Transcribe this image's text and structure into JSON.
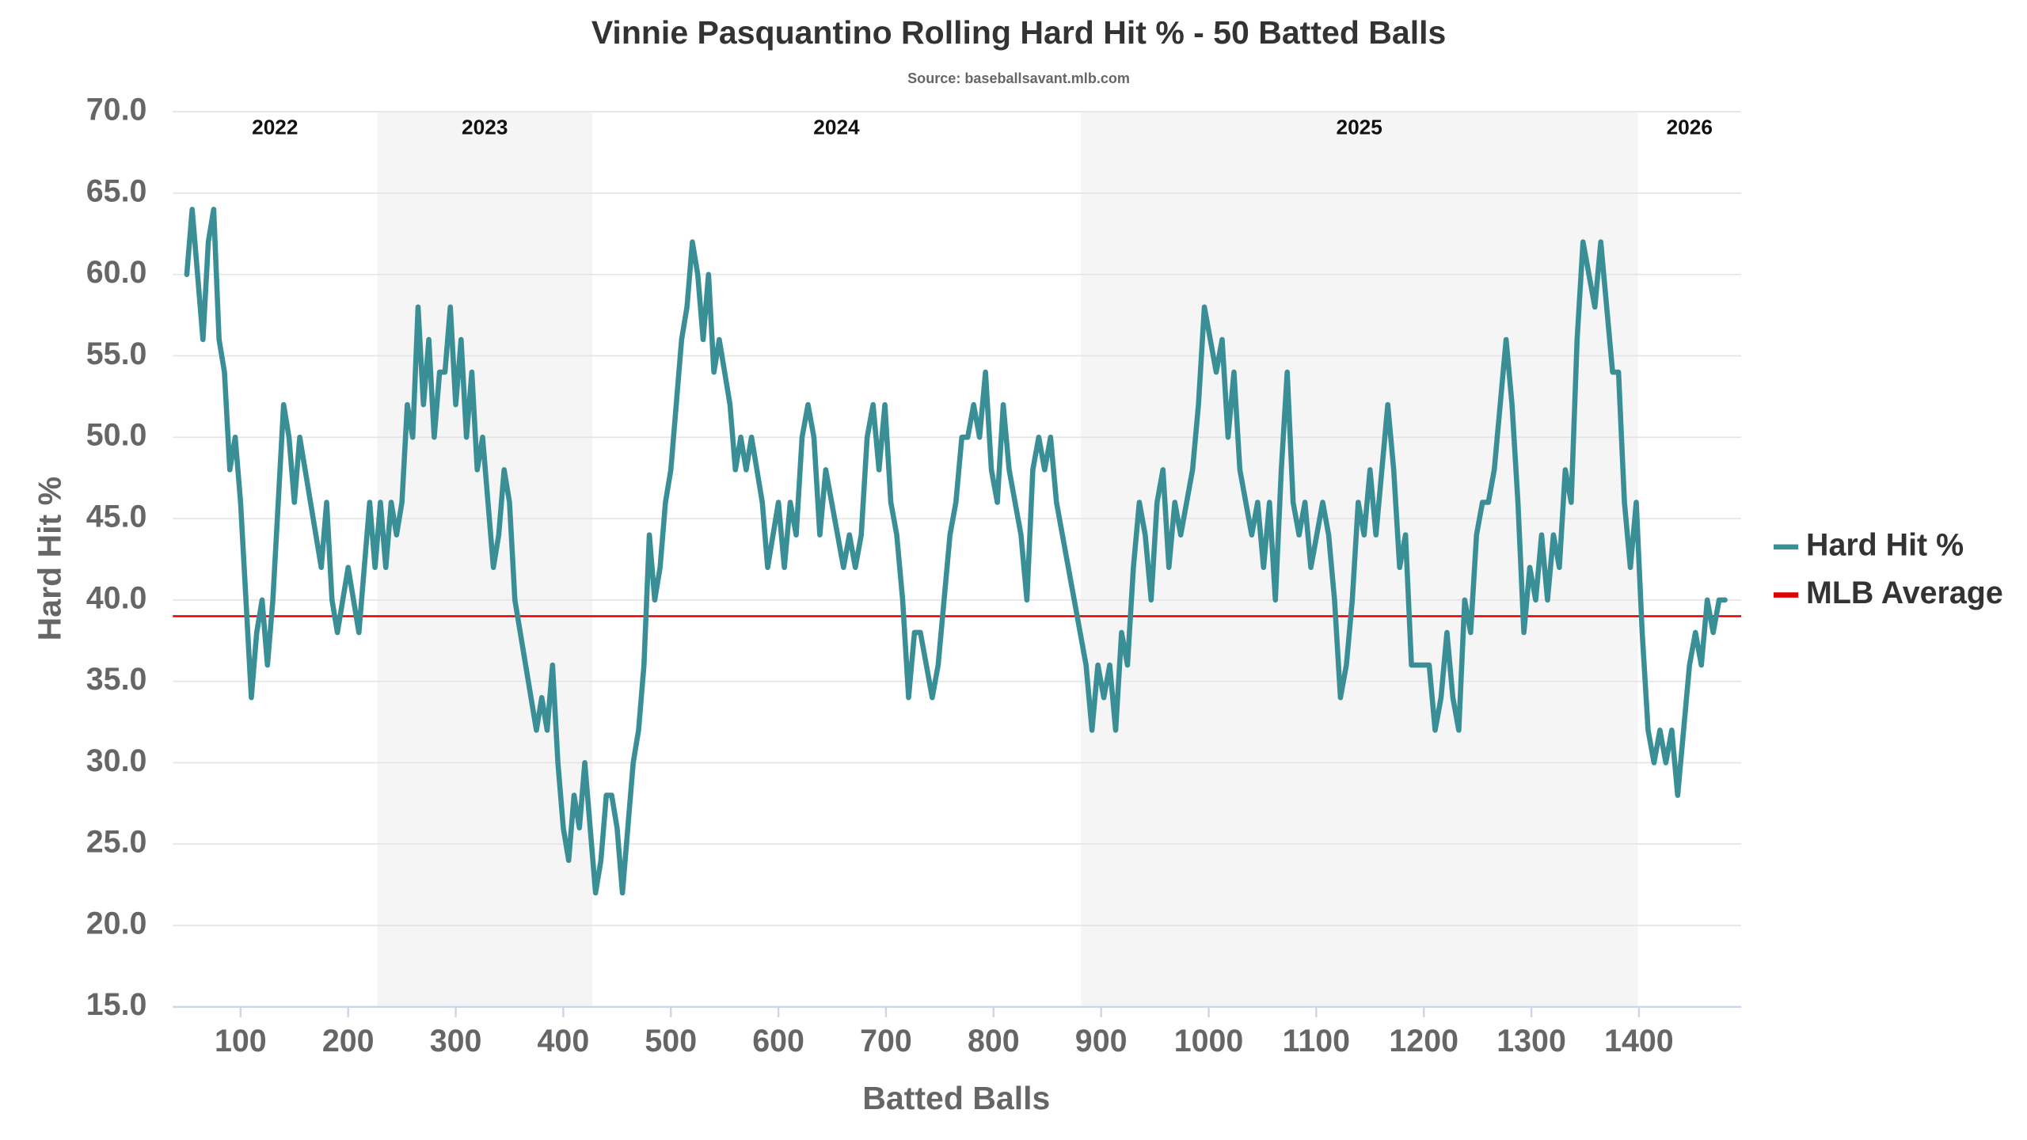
{
  "chart_data": {
    "type": "line",
    "title": "Vinnie Pasquantino Rolling Hard Hit % - 50 Batted Balls",
    "subtitle": "Source: baseballsavant.mlb.com",
    "x_label": "Batted Balls",
    "y_label": "Hard Hit %",
    "xlim": [
      37,
      1495
    ],
    "ylim": [
      15,
      70
    ],
    "xticks": [
      100,
      200,
      300,
      400,
      500,
      600,
      700,
      800,
      900,
      1000,
      1100,
      1200,
      1300,
      1400
    ],
    "yticks": [
      {
        "value": 15,
        "label": "15.0"
      },
      {
        "value": 20,
        "label": "20.0"
      },
      {
        "value": 25,
        "label": "25.0"
      },
      {
        "value": 30,
        "label": "30.0"
      },
      {
        "value": 35,
        "label": "35.0"
      },
      {
        "value": 40,
        "label": "40.0"
      },
      {
        "value": 45,
        "label": "45.0"
      },
      {
        "value": 50,
        "label": "50.0"
      },
      {
        "value": 55,
        "label": "55.0"
      },
      {
        "value": 60,
        "label": "60.0"
      },
      {
        "value": 65,
        "label": "65.0"
      },
      {
        "value": 70,
        "label": "70.0"
      }
    ],
    "grid": true,
    "legend": "right",
    "seasons": [
      {
        "label": "2022",
        "start": 37,
        "end": 227,
        "shaded": false
      },
      {
        "label": "2023",
        "start": 227,
        "end": 427,
        "shaded": true
      },
      {
        "label": "2024",
        "start": 427,
        "end": 881,
        "shaded": false
      },
      {
        "label": "2025",
        "start": 881,
        "end": 1399,
        "shaded": true
      },
      {
        "label": "2026",
        "start": 1399,
        "end": 1495,
        "shaded": false
      }
    ],
    "reference_lines": [
      {
        "name": "MLB Average",
        "value": 39,
        "color": "#e00000"
      }
    ],
    "x": [
      50,
      55,
      60,
      65,
      70,
      75,
      80,
      85,
      90,
      95,
      100,
      105,
      110,
      115,
      120,
      125,
      130,
      135,
      140,
      145,
      150,
      155,
      160,
      165,
      170,
      175,
      180,
      185,
      190,
      195,
      200,
      205,
      210,
      215,
      220,
      225,
      230,
      235,
      240,
      245,
      250,
      255,
      260,
      265,
      270,
      275,
      280,
      285,
      290,
      295,
      300,
      305,
      310,
      315,
      320,
      325,
      330,
      335,
      340,
      345,
      350,
      355,
      360,
      365,
      370,
      375,
      380,
      385,
      390,
      395,
      400,
      405,
      410,
      415,
      420,
      425,
      430,
      435,
      440,
      445,
      450,
      455,
      460,
      465,
      470,
      475,
      480,
      485,
      490,
      495,
      500,
      505,
      510,
      515,
      520,
      525,
      530,
      535,
      540,
      545,
      550,
      555,
      560,
      565,
      570,
      575,
      580,
      585,
      590,
      595,
      600,
      605.5,
      611,
      616.5,
      622,
      627.5,
      633,
      638.5,
      644,
      649.5,
      655,
      660.5,
      666,
      671.5,
      677,
      682.5,
      688,
      693.5,
      699,
      704.5,
      710,
      715.5,
      721,
      726.5,
      732,
      737.5,
      743,
      748.5,
      754,
      759.5,
      765,
      770.5,
      776,
      781.5,
      787,
      792.5,
      798,
      803.5,
      809,
      814.5,
      820,
      825.5,
      831,
      836.5,
      842,
      847.5,
      853,
      858.5,
      864,
      869.5,
      875,
      880.5,
      886,
      891.5,
      897,
      902.5,
      908,
      913.5,
      919,
      924.5,
      930,
      935.5,
      941,
      946.5,
      952,
      957.5,
      963,
      968.5,
      974,
      979.5,
      985,
      990.5,
      996,
      1001.5,
      1007,
      1012.5,
      1018,
      1023.5,
      1029,
      1034.5,
      1040,
      1045.5,
      1051,
      1056.5,
      1062,
      1067.5,
      1073,
      1078.5,
      1084,
      1089.5,
      1095,
      1100.5,
      1106,
      1111.5,
      1117,
      1122.5,
      1128,
      1133.5,
      1139,
      1144.5,
      1150,
      1155.5,
      1161,
      1166.5,
      1172,
      1177.5,
      1183,
      1188.5,
      1194,
      1199.5,
      1205,
      1210.5,
      1216,
      1221.5,
      1227,
      1232.5,
      1238,
      1243.5,
      1249,
      1254.5,
      1260,
      1265.5,
      1271,
      1276.5,
      1282,
      1287.5,
      1293,
      1298.5,
      1304,
      1309.5,
      1315,
      1320.5,
      1326,
      1331.5,
      1337,
      1342.5,
      1348,
      1353.5,
      1359,
      1364.5,
      1370,
      1375.5,
      1381,
      1386.5,
      1392,
      1397.5,
      1403,
      1408.5,
      1414,
      1419.5,
      1425,
      1430.5,
      1436,
      1441.5,
      1447,
      1452.5,
      1458,
      1463.5,
      1469,
      1474.5,
      1480
    ],
    "series": [
      {
        "name": "Hard Hit %",
        "color": "#3a8f96",
        "values": [
          60,
          64,
          60,
          56,
          62,
          64,
          56,
          54,
          48,
          50,
          46,
          40,
          34,
          38,
          40,
          36,
          40,
          46,
          52,
          50,
          46,
          50,
          48,
          46,
          44,
          42,
          46,
          40,
          38,
          40,
          42,
          40,
          38,
          42,
          46,
          42,
          46,
          42,
          46,
          44,
          46,
          52,
          50,
          58,
          52,
          56,
          50,
          54,
          54,
          58,
          52,
          56,
          50,
          54,
          48,
          50,
          46,
          42,
          44,
          48,
          46,
          40,
          38,
          36,
          34,
          32,
          34,
          32,
          36,
          30,
          26,
          24,
          28,
          26,
          30,
          26,
          22,
          24,
          28,
          28,
          26,
          22,
          26,
          30,
          32,
          36,
          44,
          40,
          42,
          46,
          48,
          52,
          56,
          58,
          62,
          60,
          56,
          60,
          54,
          56,
          54,
          52,
          48,
          50,
          48,
          50,
          48,
          46,
          42,
          44,
          46,
          42,
          46,
          44,
          50,
          52,
          50,
          44,
          48,
          46,
          44,
          42,
          44,
          42,
          44,
          50,
          52,
          48,
          52,
          46,
          44,
          40,
          34,
          38,
          38,
          36,
          34,
          36,
          40,
          44,
          46,
          50,
          50,
          52,
          50,
          54,
          48,
          46,
          52,
          48,
          46,
          44,
          40,
          48,
          50,
          48,
          50,
          46,
          44,
          42,
          40,
          38,
          36,
          32,
          36,
          34,
          36,
          32,
          38,
          36,
          42,
          46,
          44,
          40,
          46,
          48,
          42,
          46,
          44,
          46,
          48,
          52,
          58,
          56,
          54,
          56,
          50,
          54,
          48,
          46,
          44,
          46,
          42,
          46,
          40,
          48,
          54,
          46,
          44,
          46,
          42,
          44,
          46,
          44,
          40,
          34,
          36,
          40,
          46,
          44,
          48,
          44,
          48,
          52,
          48,
          42,
          44,
          36,
          36,
          36,
          36,
          32,
          34,
          38,
          34,
          32,
          40,
          38,
          44,
          46,
          46,
          48,
          52,
          56,
          52,
          46,
          38,
          42,
          40,
          44,
          40,
          44,
          42,
          48,
          46,
          56,
          62,
          60,
          58,
          62,
          58,
          54,
          54,
          46,
          42,
          46,
          38,
          32,
          30,
          32,
          30,
          32,
          28,
          32,
          36,
          38,
          36,
          40,
          38,
          40,
          40
        ]
      }
    ]
  }
}
